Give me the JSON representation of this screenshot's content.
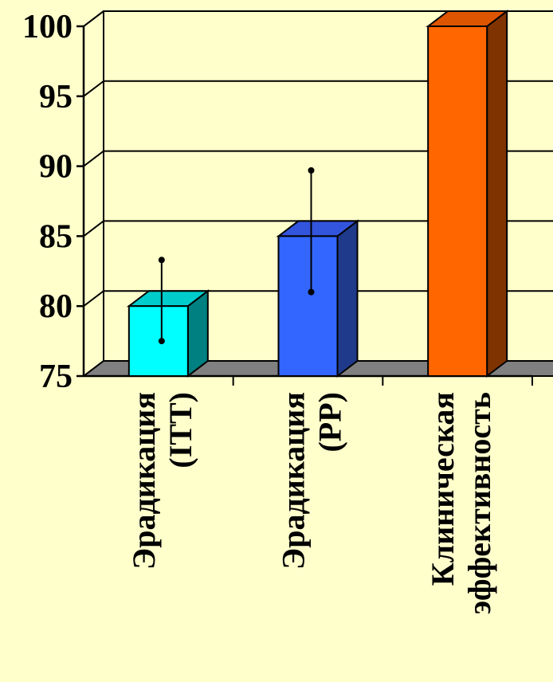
{
  "chart_data": {
    "type": "bar",
    "style": "3d",
    "categories": [
      [
        "Эрадикация",
        "(ITT)"
      ],
      [
        "Эрадикация",
        "(PP)"
      ],
      [
        "Клиническая",
        "эффективность"
      ]
    ],
    "values": [
      80,
      85,
      100
    ],
    "error_bars": [
      {
        "low": 77.5,
        "high": 83.3
      },
      {
        "low": 81,
        "high": 89.7
      },
      null
    ],
    "colors": {
      "front": [
        "#00FFFF",
        "#3366FF",
        "#FF6600"
      ],
      "top": [
        "#00CCCC",
        "#3355DD",
        "#DD5500"
      ],
      "side": [
        "#008080",
        "#1F3A8A",
        "#7F3300"
      ],
      "floor": "#808080",
      "background": "#FFFFCC"
    },
    "ylim": [
      75,
      100
    ],
    "yticks": [
      75,
      80,
      85,
      90,
      95,
      100
    ],
    "grid": true,
    "legend": "none",
    "title": "",
    "xlabel": "",
    "ylabel": ""
  }
}
